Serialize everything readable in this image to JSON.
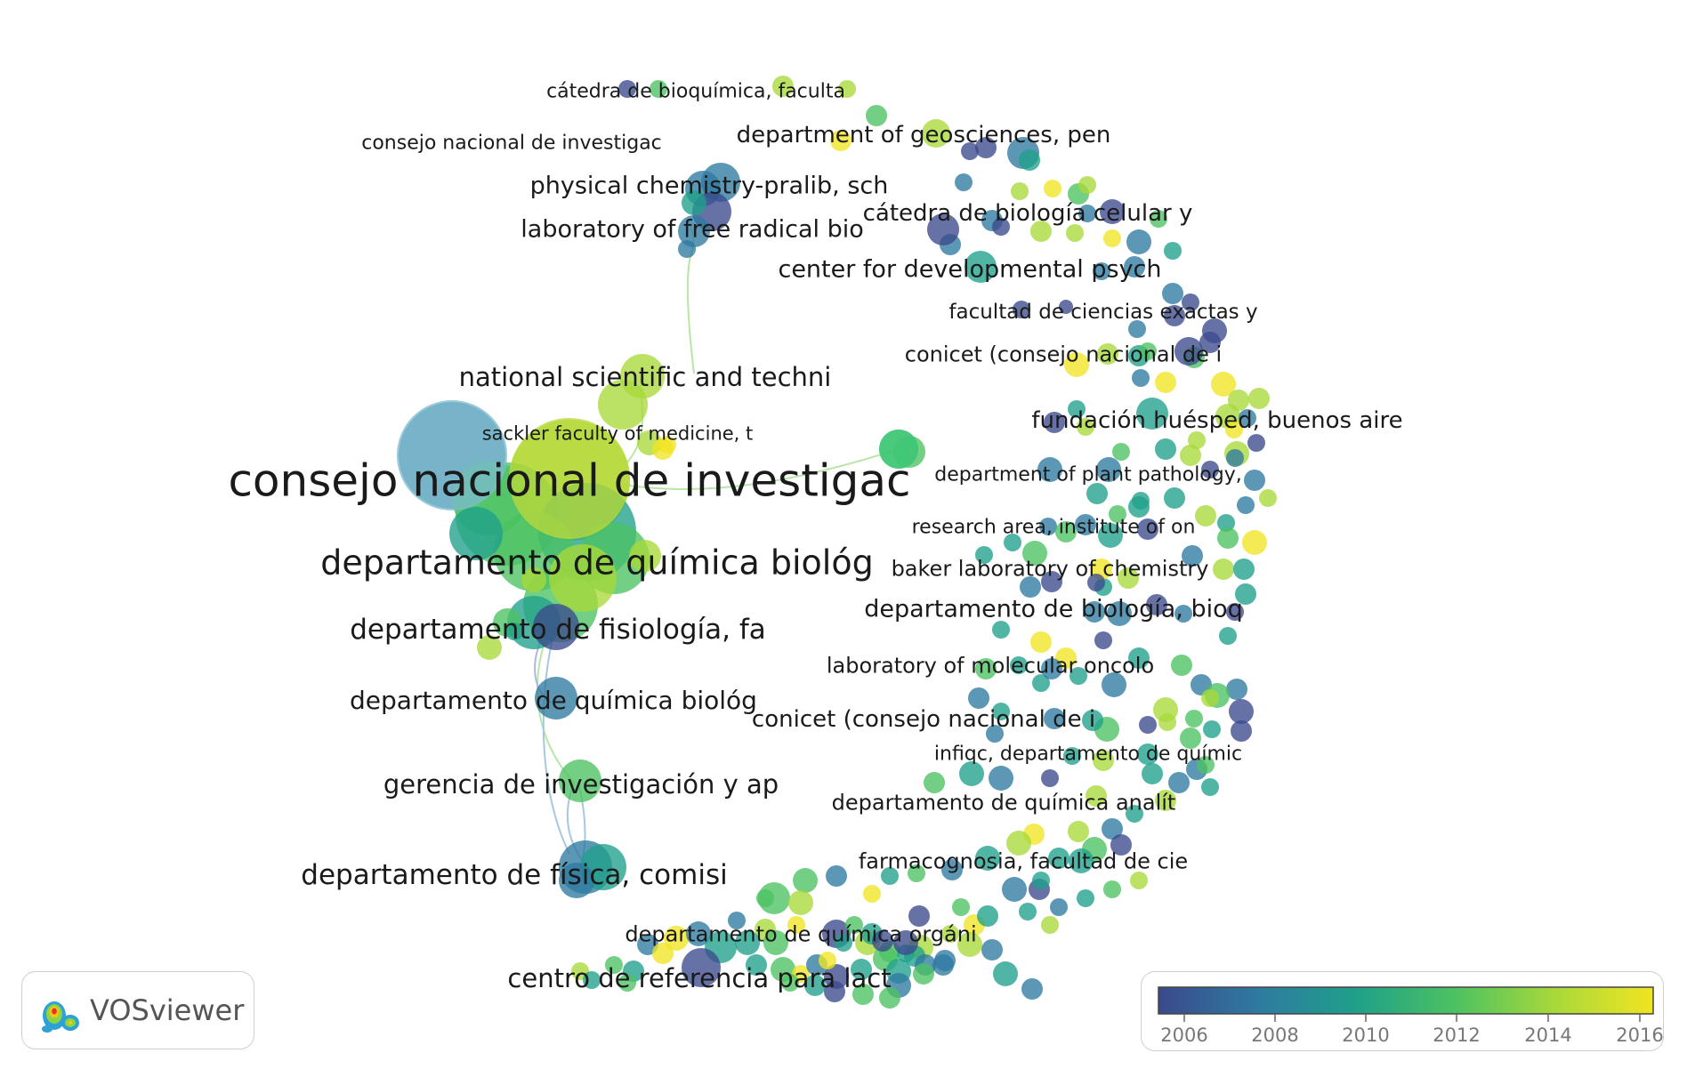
{
  "brand": {
    "name": "VOSviewer"
  },
  "legend": {
    "colors": [
      "#3b4a8c",
      "#2e7aa0",
      "#1fa08a",
      "#4cc261",
      "#a8d83a",
      "#f1e422"
    ],
    "ticks": [
      "2006",
      "2008",
      "2010",
      "2012",
      "2014",
      "2016"
    ]
  },
  "labels": [
    {
      "text": "consejo nacional de investigac",
      "size": 50
    },
    {
      "text": "departamento de química biológ",
      "size": 38
    },
    {
      "text": "departamento de fisiología, fa",
      "size": 31
    },
    {
      "text": "departamento de química biológ",
      "size": 28
    },
    {
      "text": "gerencia de investigación y ap",
      "size": 29
    },
    {
      "text": "departamento de física, comisi",
      "size": 31
    },
    {
      "text": "centro de referencia para lact",
      "size": 29
    },
    {
      "text": "national scientific and techni",
      "size": 29
    },
    {
      "text": "sackler faculty of medicine, t",
      "size": 21
    },
    {
      "text": "physical chemistry-pralib, sch",
      "size": 27
    },
    {
      "text": "laboratory of free radical bio",
      "size": 27
    },
    {
      "text": "consejo nacional de investigac",
      "size": 22
    },
    {
      "text": "cátedra de bioquímica, faculta",
      "size": 22
    },
    {
      "text": "department of geosciences, pen",
      "size": 26
    },
    {
      "text": "cátedra de biología celular y",
      "size": 26
    },
    {
      "text": "center for developmental psych",
      "size": 27
    },
    {
      "text": "facultad de ciencias exactas y",
      "size": 23
    },
    {
      "text": "conicet (consejo nacional de i",
      "size": 24
    },
    {
      "text": "fundación huésped, buenos aire",
      "size": 26
    },
    {
      "text": "department of plant pathology,",
      "size": 22
    },
    {
      "text": "research area, institute of on",
      "size": 22
    },
    {
      "text": "baker laboratory of chemistry",
      "size": 24
    },
    {
      "text": "departamento de biología, bioq",
      "size": 27
    },
    {
      "text": "laboratory of molecular oncolo",
      "size": 24
    },
    {
      "text": "conicet (consejo nacional de i",
      "size": 26
    },
    {
      "text": "infiqc, departamento de químic",
      "size": 22
    },
    {
      "text": "departamento de química analít",
      "size": 24
    },
    {
      "text": "farmacognosia, facultad de cie",
      "size": 24
    },
    {
      "text": "departamento de química orgáni",
      "size": 24
    }
  ]
}
